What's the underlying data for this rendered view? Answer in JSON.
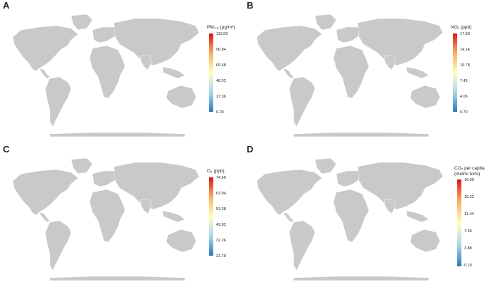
{
  "colors": {
    "land": "#c9c9c9",
    "scale": [
      "#2c7bb6",
      "#abd9e9",
      "#ffffbf",
      "#fdae61",
      "#d7191c"
    ]
  },
  "panels": [
    {
      "letter": "A",
      "legend_title": "PM₂.₅ (μg/m³)",
      "ticks": [
        "112.00",
        "90.84",
        "69.68",
        "48.52",
        "27.36",
        "6.20"
      ]
    },
    {
      "letter": "B",
      "legend_title": "NO₂ (ppb)",
      "ticks": [
        "17.50",
        "14.14",
        "10.78",
        "7.42",
        "4.06",
        "0.70"
      ]
    },
    {
      "letter": "C",
      "legend_title": "O₃ (ppb)",
      "ticks": [
        "74.50",
        "63.94",
        "53.38",
        "42.82",
        "32.26",
        "21.70"
      ]
    },
    {
      "letter": "D",
      "legend_title": "CO₂ per capita",
      "legend_title_2": "(metric tons)",
      "ticks": [
        "19.00",
        "15.22",
        "11.44",
        "7.66",
        "3.88",
        "0.10"
      ]
    }
  ]
}
